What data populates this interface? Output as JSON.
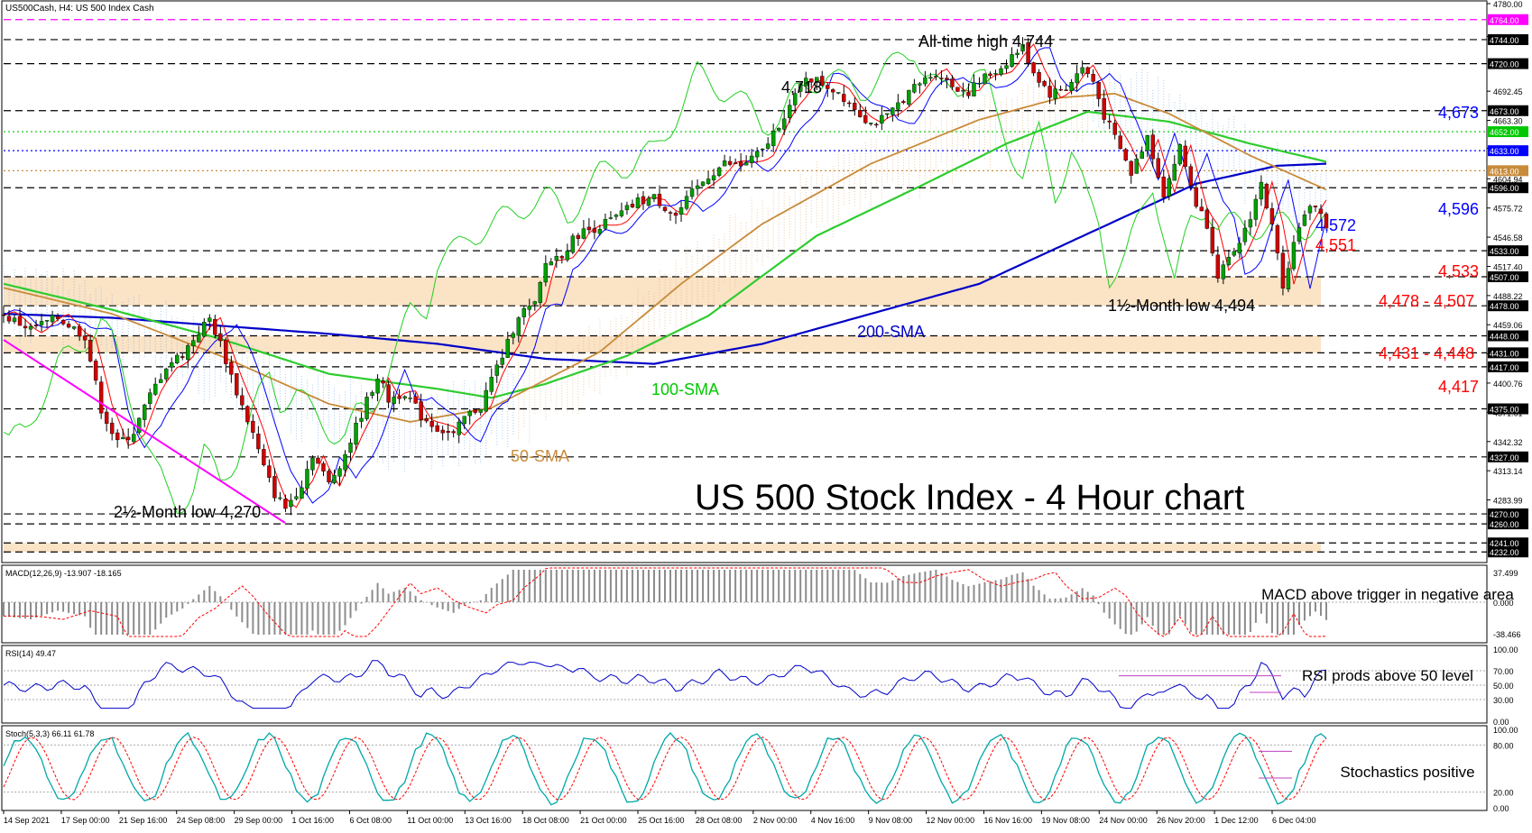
{
  "header": {
    "symbol": "US500Cash, H4:  US 500 Index Cash"
  },
  "chart_data": {
    "type": "candlestick",
    "title": "US 500 Stock Index - 4 Hour chart",
    "price_axis_labels": [
      "4780.00",
      "4747.10",
      "4692.45",
      "4663.30",
      "4635.40",
      "4604.94",
      "4575.72",
      "4546.58",
      "4517.40",
      "4488.22",
      "4459.06",
      "4429.91",
      "4400.76",
      "4371.61",
      "4342.32",
      "4313.14",
      "4283.99"
    ],
    "levels": [
      {
        "label": "4764.00",
        "value": 4764,
        "color": "#ff00ff",
        "dash": "dash",
        "tag": "#ff00ff"
      },
      {
        "label": "4744.00",
        "value": 4744,
        "color": "#000000",
        "dash": "dash",
        "tag": "#000000"
      },
      {
        "label": "4720.00",
        "value": 4720,
        "color": "#000000",
        "dash": "dash",
        "tag": "#000000"
      },
      {
        "label": "4673.00",
        "value": 4673,
        "color": "#000000",
        "dash": "dash",
        "tag": "#000000"
      },
      {
        "label": "4652.00",
        "value": 4652,
        "color": "#00c800",
        "dash": "dot",
        "tag": "#00c800"
      },
      {
        "label": "4633.00",
        "value": 4633,
        "color": "#0000ff",
        "dash": "dot",
        "tag": "#0000ff"
      },
      {
        "label": "4613.00",
        "value": 4613,
        "color": "#c88b3a",
        "dash": "dot",
        "tag": "#c88b3a"
      },
      {
        "label": "4596.00",
        "value": 4596,
        "color": "#000000",
        "dash": "dash",
        "tag": "#000000"
      },
      {
        "label": "4533.00",
        "value": 4533,
        "color": "#000000",
        "dash": "dash",
        "tag": "#000000"
      },
      {
        "label": "4507.00",
        "value": 4507,
        "color": "#000000",
        "dash": "dash",
        "tag": "#000000"
      },
      {
        "label": "4478.00",
        "value": 4478,
        "color": "#000000",
        "dash": "dash",
        "tag": "#000000"
      },
      {
        "label": "4448.00",
        "value": 4448,
        "color": "#000000",
        "dash": "dash",
        "tag": "#000000"
      },
      {
        "label": "4431.00",
        "value": 4431,
        "color": "#000000",
        "dash": "dash",
        "tag": "#000000"
      },
      {
        "label": "4417.00",
        "value": 4417,
        "color": "#000000",
        "dash": "dash",
        "tag": "#000000"
      },
      {
        "label": "4375.00",
        "value": 4375,
        "color": "#000000",
        "dash": "dash",
        "tag": "#000000"
      },
      {
        "label": "4327.00",
        "value": 4327,
        "color": "#000000",
        "dash": "dash",
        "tag": "#000000"
      },
      {
        "label": "4270.00",
        "value": 4270,
        "color": "#000000",
        "dash": "dash",
        "tag": "#000000"
      },
      {
        "label": "4260.00",
        "value": 4260,
        "color": "#000000",
        "dash": "dash",
        "tag": "#000000"
      },
      {
        "label": "4241.00",
        "value": 4241,
        "color": "#000000",
        "dash": "dash",
        "tag": "#000000"
      },
      {
        "label": "4232.00",
        "value": 4232,
        "color": "#000000",
        "dash": "dash",
        "tag": "#000000"
      }
    ],
    "zones": [
      {
        "from": 4478,
        "to": 4507
      },
      {
        "from": 4431,
        "to": 4448
      },
      {
        "from": 4232,
        "to": 4241
      }
    ],
    "annotations": [
      {
        "text": "All-time high 4,744",
        "color": "#000000"
      },
      {
        "text": "4,718",
        "color": "#000000"
      },
      {
        "text": "4,673",
        "color": "#0000ff"
      },
      {
        "text": "4,596",
        "color": "#0000ff"
      },
      {
        "text": "4,572",
        "color": "#0000ff"
      },
      {
        "text": "4,551",
        "color": "#ff0000"
      },
      {
        "text": "4,533",
        "color": "#ff0000"
      },
      {
        "text": "4,478 - 4,507",
        "color": "#ff0000"
      },
      {
        "text": "1½-Month low 4,494",
        "color": "#000000"
      },
      {
        "text": "200-SMA",
        "color": "#0000c8"
      },
      {
        "text": "4,431 - 4,448",
        "color": "#ff0000"
      },
      {
        "text": "100-SMA",
        "color": "#00c800"
      },
      {
        "text": "4,417",
        "color": "#ff0000"
      },
      {
        "text": "50-SMA",
        "color": "#c88b3a"
      },
      {
        "text": "2½-Month low 4,270",
        "color": "#000000"
      }
    ],
    "price_path": [
      [
        0,
        4468
      ],
      [
        5,
        4455
      ],
      [
        10,
        4466
      ],
      [
        15,
        4448
      ],
      [
        18,
        4375
      ],
      [
        21,
        4340
      ],
      [
        24,
        4352
      ],
      [
        27,
        4388
      ],
      [
        30,
        4418
      ],
      [
        33,
        4430
      ],
      [
        36,
        4452
      ],
      [
        38,
        4465
      ],
      [
        40,
        4440
      ],
      [
        43,
        4392
      ],
      [
        46,
        4350
      ],
      [
        48,
        4316
      ],
      [
        50,
        4290
      ],
      [
        52,
        4276
      ],
      [
        55,
        4300
      ],
      [
        57,
        4330
      ],
      [
        60,
        4300
      ],
      [
        63,
        4330
      ],
      [
        66,
        4370
      ],
      [
        69,
        4408
      ],
      [
        71,
        4384
      ],
      [
        74,
        4392
      ],
      [
        77,
        4368
      ],
      [
        80,
        4356
      ],
      [
        83,
        4348
      ],
      [
        85,
        4366
      ],
      [
        88,
        4378
      ],
      [
        90,
        4405
      ],
      [
        93,
        4440
      ],
      [
        95,
        4470
      ],
      [
        98,
        4478
      ],
      [
        100,
        4520
      ],
      [
        103,
        4530
      ],
      [
        106,
        4550
      ],
      [
        110,
        4558
      ],
      [
        113,
        4566
      ],
      [
        117,
        4582
      ],
      [
        120,
        4586
      ],
      [
        124,
        4568
      ],
      [
        127,
        4590
      ],
      [
        130,
        4608
      ],
      [
        133,
        4620
      ],
      [
        136,
        4618
      ],
      [
        140,
        4632
      ],
      [
        143,
        4660
      ],
      [
        146,
        4686
      ],
      [
        148,
        4708
      ],
      [
        151,
        4700
      ],
      [
        154,
        4692
      ],
      [
        157,
        4676
      ],
      [
        160,
        4660
      ],
      [
        163,
        4666
      ],
      [
        166,
        4686
      ],
      [
        169,
        4700
      ],
      [
        172,
        4712
      ],
      [
        175,
        4698
      ],
      [
        178,
        4692
      ],
      [
        181,
        4706
      ],
      [
        184,
        4716
      ],
      [
        186,
        4728
      ],
      [
        188,
        4736
      ],
      [
        190,
        4712
      ],
      [
        193,
        4690
      ],
      [
        196,
        4696
      ],
      [
        199,
        4716
      ],
      [
        201,
        4702
      ],
      [
        203,
        4668
      ],
      [
        206,
        4634
      ],
      [
        208,
        4610
      ],
      [
        211,
        4648
      ],
      [
        214,
        4590
      ],
      [
        217,
        4636
      ],
      [
        220,
        4580
      ],
      [
        222,
        4560
      ],
      [
        224,
        4510
      ],
      [
        227,
        4528
      ],
      [
        230,
        4568
      ],
      [
        232,
        4600
      ],
      [
        234,
        4556
      ],
      [
        236,
        4500
      ],
      [
        239,
        4560
      ],
      [
        242,
        4580
      ],
      [
        244,
        4558
      ]
    ],
    "sma200": [
      [
        0,
        4470
      ],
      [
        20,
        4466
      ],
      [
        40,
        4458
      ],
      [
        60,
        4450
      ],
      [
        80,
        4440
      ],
      [
        100,
        4425
      ],
      [
        120,
        4420
      ],
      [
        140,
        4440
      ],
      [
        160,
        4470
      ],
      [
        180,
        4500
      ],
      [
        200,
        4550
      ],
      [
        220,
        4600
      ],
      [
        235,
        4618
      ],
      [
        244,
        4620
      ]
    ],
    "sma100": [
      [
        0,
        4500
      ],
      [
        20,
        4474
      ],
      [
        40,
        4445
      ],
      [
        60,
        4410
      ],
      [
        80,
        4395
      ],
      [
        90,
        4386
      ],
      [
        100,
        4400
      ],
      [
        115,
        4428
      ],
      [
        130,
        4468
      ],
      [
        150,
        4548
      ],
      [
        170,
        4600
      ],
      [
        185,
        4640
      ],
      [
        200,
        4672
      ],
      [
        215,
        4662
      ],
      [
        230,
        4640
      ],
      [
        244,
        4622
      ]
    ],
    "sma50": [
      [
        0,
        4496
      ],
      [
        20,
        4470
      ],
      [
        40,
        4428
      ],
      [
        60,
        4380
      ],
      [
        75,
        4362
      ],
      [
        90,
        4376
      ],
      [
        110,
        4432
      ],
      [
        125,
        4500
      ],
      [
        140,
        4560
      ],
      [
        160,
        4620
      ],
      [
        180,
        4664
      ],
      [
        195,
        4686
      ],
      [
        205,
        4690
      ],
      [
        215,
        4670
      ],
      [
        230,
        4628
      ],
      [
        244,
        4594
      ]
    ],
    "series": [
      {
        "name": "MACD(12,26,9) -13.907 -18.165",
        "axis_labels": [
          "37.499",
          "0.000",
          "-38.466"
        ]
      },
      {
        "name": "RSI(14) 49.47",
        "axis_labels": [
          "100.00",
          "70.00",
          "50.00",
          "30.00",
          "0.00"
        ]
      },
      {
        "name": "Stoch(5,3,3) 66.11 61.78",
        "axis_labels": [
          "100.00",
          "80.00",
          "20.00",
          "0.00"
        ]
      }
    ],
    "indicator_notes": [
      {
        "text": "MACD above trigger in negative area"
      },
      {
        "text": "RSI prods above 50 level"
      },
      {
        "text": "Stochastics positive"
      }
    ],
    "date_labels": [
      "14 Sep 2021",
      "17 Sep 00:00",
      "21 Sep 16:00",
      "24 Sep 08:00",
      "29 Sep 00:00",
      "1 Oct 16:00",
      "6 Oct 08:00",
      "11 Oct 00:00",
      "13 Oct 16:00",
      "18 Oct 08:00",
      "21 Oct 00:00",
      "25 Oct 16:00",
      "28 Oct 08:00",
      "2 Nov 00:00",
      "4 Nov 16:00",
      "9 Nov 08:00",
      "12 Nov 00:00",
      "16 Nov 16:00",
      "19 Nov 08:00",
      "24 Nov 00:00",
      "26 Nov 20:00",
      "1 Dec 12:00",
      "6 Dec 04:00"
    ],
    "colors": {
      "bull": "#00a000",
      "bear": "#d00000",
      "sma200": "#0000c8",
      "sma100": "#2ecc2e",
      "sma50": "#c88b3a",
      "zone": "#fbe3c6",
      "macd_hist": "#8c8c8c",
      "macd_signal": "#ff0000",
      "rsi": "#0000c8",
      "stoch_main": "#00a8a8",
      "stoch_signal": "#ff0000"
    }
  }
}
